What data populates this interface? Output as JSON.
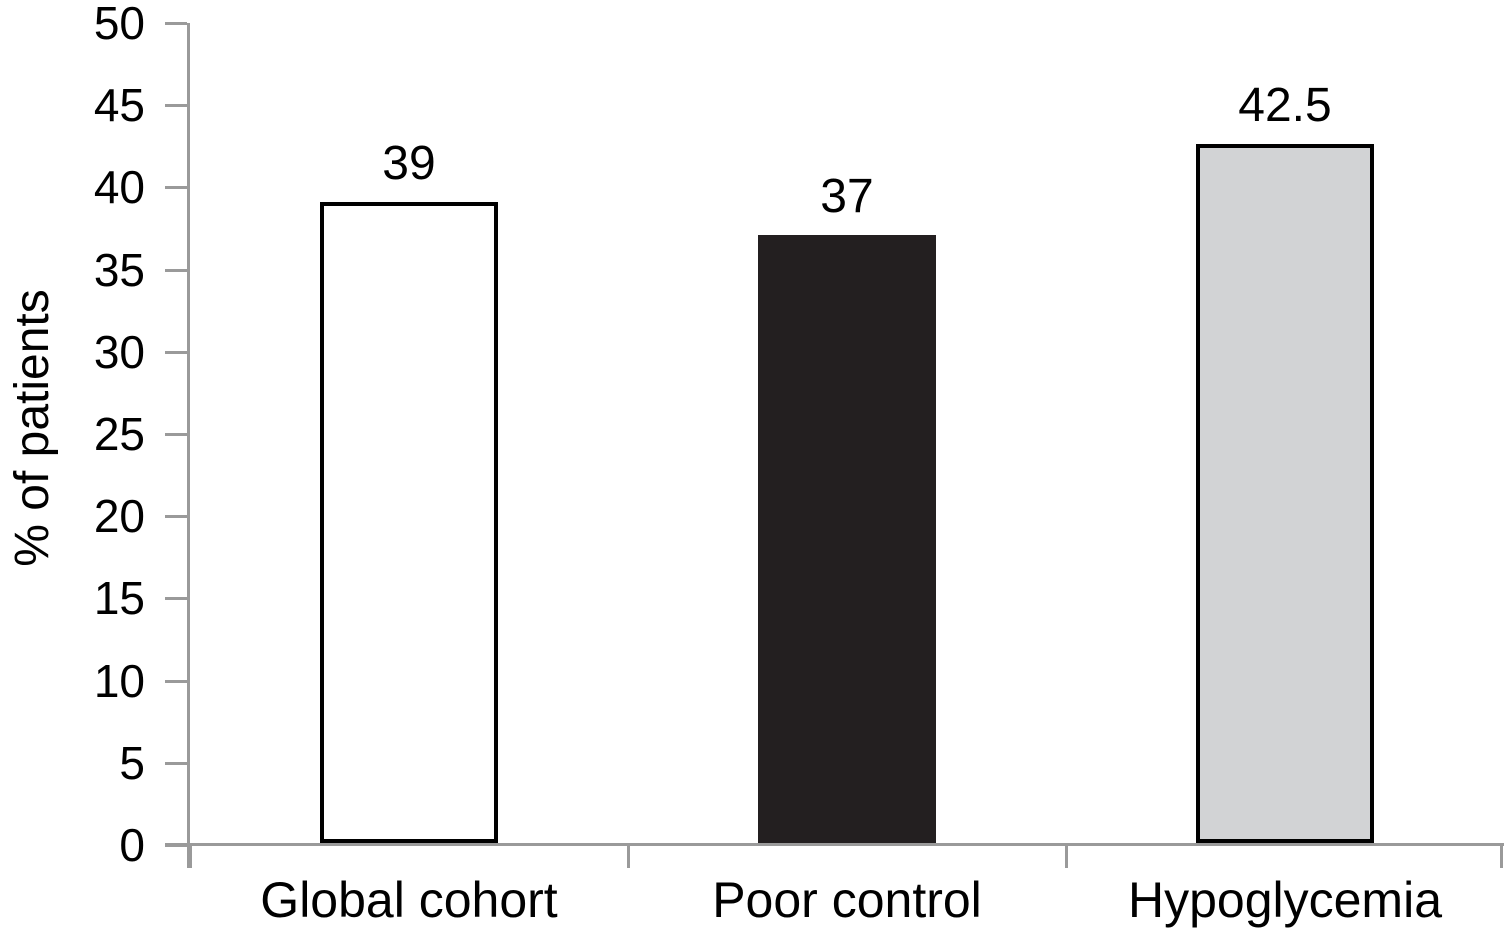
{
  "chart_data": {
    "type": "bar",
    "title": "",
    "xlabel": "",
    "ylabel": "% of patients",
    "categories": [
      "Global cohort",
      "Poor control",
      "Hypoglycemia"
    ],
    "values": [
      39,
      37,
      42.5
    ],
    "value_labels": [
      "39",
      "37",
      "42.5"
    ],
    "ylim": [
      0,
      50
    ],
    "ytick_step": 5,
    "yticks": [
      0,
      5,
      10,
      15,
      20,
      25,
      30,
      35,
      40,
      45,
      50
    ],
    "grid": false,
    "legend_position": "none",
    "bar_styles": [
      {
        "fill": "#ffffff",
        "border": "#000000"
      },
      {
        "fill": "#231f20",
        "border": "#231f20"
      },
      {
        "fill": "#d2d3d5",
        "border": "#000000"
      }
    ],
    "axis_color": "#9a9a9a",
    "text_color": "#000000",
    "background": "#ffffff"
  }
}
